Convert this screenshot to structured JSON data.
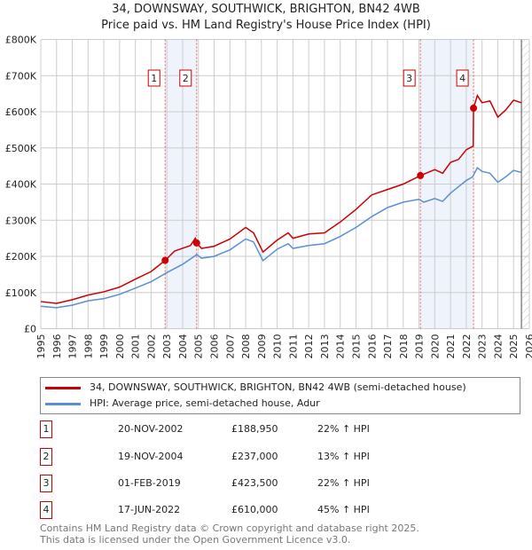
{
  "title": "34, DOWNSWAY, SOUTHWICK, BRIGHTON, BN42 4WB",
  "subtitle": "Price paid vs. HM Land Registry's House Price Index (HPI)",
  "chart_data": {
    "type": "line",
    "title": "34, DOWNSWAY, SOUTHWICK, BRIGHTON, BN42 4WB — Price paid vs. HM Land Registry's House Price Index (HPI)",
    "xlim": [
      1995,
      2026
    ],
    "ylim": [
      0,
      800000
    ],
    "x_ticks": [
      "1995",
      "1996",
      "1997",
      "1998",
      "1999",
      "2000",
      "2001",
      "2002",
      "2003",
      "2004",
      "2005",
      "2006",
      "2007",
      "2008",
      "2009",
      "2010",
      "2011",
      "2012",
      "2013",
      "2014",
      "2015",
      "2016",
      "2017",
      "2018",
      "2019",
      "2020",
      "2021",
      "2022",
      "2023",
      "2024",
      "2025",
      "2026"
    ],
    "y_ticks": [
      {
        "v": 0,
        "label": "£0"
      },
      {
        "v": 100000,
        "label": "£100K"
      },
      {
        "v": 200000,
        "label": "£200K"
      },
      {
        "v": 300000,
        "label": "£300K"
      },
      {
        "v": 400000,
        "label": "£400K"
      },
      {
        "v": 500000,
        "label": "£500K"
      },
      {
        "v": 600000,
        "label": "£600K"
      },
      {
        "v": 700000,
        "label": "£700K"
      },
      {
        "v": 800000,
        "label": "£800K"
      }
    ],
    "grid": true,
    "series": [
      {
        "name": "34, DOWNSWAY, SOUTHWICK, BRIGHTON, BN42 4WB (semi-detached house)",
        "color": "#cc0000",
        "points": [
          [
            1995,
            75000
          ],
          [
            1996,
            70000
          ],
          [
            1997,
            80000
          ],
          [
            1998,
            93000
          ],
          [
            1999,
            102000
          ],
          [
            2000,
            115000
          ],
          [
            2001,
            137000
          ],
          [
            2002,
            158000
          ],
          [
            2002.89,
            188950
          ],
          [
            2003.5,
            215000
          ],
          [
            2004.5,
            230000
          ],
          [
            2004.8,
            250000
          ],
          [
            2004.89,
            237000
          ],
          [
            2005.2,
            222000
          ],
          [
            2006,
            228000
          ],
          [
            2007,
            248000
          ],
          [
            2008,
            280000
          ],
          [
            2008.5,
            265000
          ],
          [
            2009.1,
            212000
          ],
          [
            2010,
            245000
          ],
          [
            2010.7,
            265000
          ],
          [
            2011,
            250000
          ],
          [
            2012,
            262000
          ],
          [
            2013,
            265000
          ],
          [
            2014,
            295000
          ],
          [
            2015,
            330000
          ],
          [
            2016,
            370000
          ],
          [
            2017,
            385000
          ],
          [
            2018,
            400000
          ],
          [
            2019.09,
            423500
          ],
          [
            2020,
            440000
          ],
          [
            2020.5,
            430000
          ],
          [
            2021,
            460000
          ],
          [
            2021.5,
            468000
          ],
          [
            2022,
            495000
          ],
          [
            2022.44,
            505000
          ],
          [
            2022.46,
            610000
          ],
          [
            2022.7,
            645000
          ],
          [
            2023,
            625000
          ],
          [
            2023.5,
            630000
          ],
          [
            2024,
            585000
          ],
          [
            2024.5,
            605000
          ],
          [
            2025,
            632000
          ],
          [
            2025.5,
            625000
          ]
        ]
      },
      {
        "name": "HPI: Average price, semi-detached house, Adur",
        "color": "#5b8fd4",
        "points": [
          [
            1995,
            62000
          ],
          [
            1996,
            58000
          ],
          [
            1997,
            65000
          ],
          [
            1998,
            77000
          ],
          [
            1999,
            83000
          ],
          [
            2000,
            95000
          ],
          [
            2001,
            112000
          ],
          [
            2002,
            130000
          ],
          [
            2003,
            155000
          ],
          [
            2004,
            178000
          ],
          [
            2004.9,
            205000
          ],
          [
            2005.2,
            195000
          ],
          [
            2006,
            200000
          ],
          [
            2007,
            218000
          ],
          [
            2008,
            248000
          ],
          [
            2008.5,
            240000
          ],
          [
            2009.1,
            188000
          ],
          [
            2010,
            220000
          ],
          [
            2010.7,
            235000
          ],
          [
            2011,
            222000
          ],
          [
            2012,
            230000
          ],
          [
            2013,
            235000
          ],
          [
            2014,
            255000
          ],
          [
            2015,
            280000
          ],
          [
            2016,
            310000
          ],
          [
            2017,
            335000
          ],
          [
            2018,
            350000
          ],
          [
            2019,
            358000
          ],
          [
            2019.3,
            350000
          ],
          [
            2020,
            360000
          ],
          [
            2020.5,
            352000
          ],
          [
            2021,
            375000
          ],
          [
            2022,
            410000
          ],
          [
            2022.4,
            420000
          ],
          [
            2022.7,
            445000
          ],
          [
            2023,
            435000
          ],
          [
            2023.5,
            430000
          ],
          [
            2024,
            405000
          ],
          [
            2024.5,
            420000
          ],
          [
            2025,
            438000
          ],
          [
            2025.5,
            432000
          ]
        ]
      }
    ],
    "sales": [
      {
        "n": "1",
        "x": 2002.89,
        "y": 188950
      },
      {
        "n": "2",
        "x": 2004.89,
        "y": 237000
      },
      {
        "n": "3",
        "x": 2019.09,
        "y": 423500
      },
      {
        "n": "4",
        "x": 2022.46,
        "y": 610000
      }
    ],
    "shaded": [
      [
        2002.89,
        2004.89
      ],
      [
        2019.09,
        2022.46
      ]
    ],
    "forecast_from": 2025.5
  },
  "legend": [
    {
      "label": "34, DOWNSWAY, SOUTHWICK, BRIGHTON, BN42 4WB (semi-detached house)",
      "color": "#cc0000"
    },
    {
      "label": "HPI: Average price, semi-detached house, Adur",
      "color": "#5b8fd4"
    }
  ],
  "transactions": [
    {
      "n": "1",
      "date": "20-NOV-2002",
      "price": "£188,950",
      "hpi": "22% ↑ HPI"
    },
    {
      "n": "2",
      "date": "19-NOV-2004",
      "price": "£237,000",
      "hpi": "13% ↑ HPI"
    },
    {
      "n": "3",
      "date": "01-FEB-2019",
      "price": "£423,500",
      "hpi": "22% ↑ HPI"
    },
    {
      "n": "4",
      "date": "17-JUN-2022",
      "price": "£610,000",
      "hpi": "45% ↑ HPI"
    }
  ],
  "footer": [
    "Contains HM Land Registry data © Crown copyright and database right 2025.",
    "This data is licensed under the Open Government Licence v3.0."
  ]
}
